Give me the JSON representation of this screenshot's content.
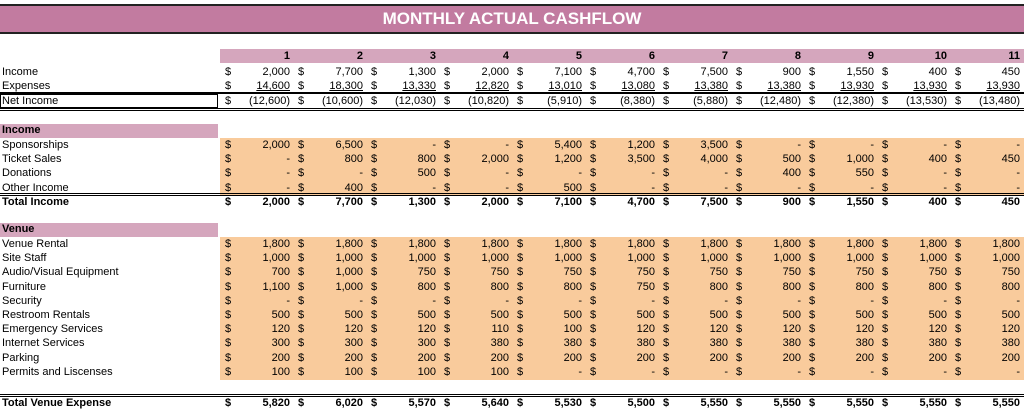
{
  "title": "MONTHLY ACTUAL CASHFLOW",
  "months": [
    "1",
    "2",
    "3",
    "4",
    "5",
    "6",
    "7",
    "8",
    "9",
    "10",
    "11"
  ],
  "currency": "$",
  "summary": [
    {
      "label": "Income",
      "values": [
        "2,000",
        "7,700",
        "1,300",
        "2,000",
        "7,100",
        "4,700",
        "7,500",
        "900",
        "1,550",
        "400",
        "450"
      ]
    },
    {
      "label": "Expenses",
      "values": [
        "14,600",
        "18,300",
        "13,330",
        "12,820",
        "13,010",
        "13,080",
        "13,380",
        "13,380",
        "13,930",
        "13,930",
        "13,930"
      ]
    },
    {
      "label": "Net Income",
      "values": [
        "(12,600)",
        "(10,600)",
        "(12,030)",
        "(10,820)",
        "(5,910)",
        "(8,380)",
        "(5,880)",
        "(12,480)",
        "(12,380)",
        "(13,530)",
        "(13,480)"
      ]
    }
  ],
  "income": {
    "header": "Income",
    "rows": [
      {
        "label": "Sponsorships",
        "values": [
          "2,000",
          "6,500",
          "-",
          "-",
          "5,400",
          "1,200",
          "3,500",
          "-",
          "-",
          "-",
          "-"
        ]
      },
      {
        "label": "Ticket Sales",
        "values": [
          "-",
          "800",
          "800",
          "2,000",
          "1,200",
          "3,500",
          "4,000",
          "500",
          "1,000",
          "400",
          "450"
        ]
      },
      {
        "label": "Donations",
        "values": [
          "-",
          "-",
          "500",
          "-",
          "-",
          "-",
          "-",
          "400",
          "550",
          "-",
          "-"
        ]
      },
      {
        "label": "Other Income",
        "values": [
          "-",
          "400",
          "-",
          "-",
          "500",
          "-",
          "-",
          "-",
          "-",
          "-",
          "-"
        ]
      }
    ],
    "total": {
      "label": "Total Income",
      "values": [
        "2,000",
        "7,700",
        "1,300",
        "2,000",
        "7,100",
        "4,700",
        "7,500",
        "900",
        "1,550",
        "400",
        "450"
      ]
    }
  },
  "venue": {
    "header": "Venue",
    "rows": [
      {
        "label": "Venue Rental",
        "values": [
          "1,800",
          "1,800",
          "1,800",
          "1,800",
          "1,800",
          "1,800",
          "1,800",
          "1,800",
          "1,800",
          "1,800",
          "1,800"
        ]
      },
      {
        "label": "Site Staff",
        "values": [
          "1,000",
          "1,000",
          "1,000",
          "1,000",
          "1,000",
          "1,000",
          "1,000",
          "1,000",
          "1,000",
          "1,000",
          "1,000"
        ]
      },
      {
        "label": "Audio/Visual Equipment",
        "values": [
          "700",
          "1,000",
          "750",
          "750",
          "750",
          "750",
          "750",
          "750",
          "750",
          "750",
          "750"
        ]
      },
      {
        "label": "Furniture",
        "values": [
          "1,100",
          "1,000",
          "800",
          "800",
          "800",
          "750",
          "800",
          "800",
          "800",
          "800",
          "800"
        ]
      },
      {
        "label": "Security",
        "values": [
          "-",
          "-",
          "-",
          "-",
          "-",
          "-",
          "-",
          "-",
          "-",
          "-",
          "-"
        ]
      },
      {
        "label": "Restroom Rentals",
        "values": [
          "500",
          "500",
          "500",
          "500",
          "500",
          "500",
          "500",
          "500",
          "500",
          "500",
          "500"
        ]
      },
      {
        "label": "Emergency Services",
        "values": [
          "120",
          "120",
          "120",
          "110",
          "100",
          "120",
          "120",
          "120",
          "120",
          "120",
          "120"
        ]
      },
      {
        "label": "Internet Services",
        "values": [
          "300",
          "300",
          "300",
          "380",
          "380",
          "380",
          "380",
          "380",
          "380",
          "380",
          "380"
        ]
      },
      {
        "label": "Parking",
        "values": [
          "200",
          "200",
          "200",
          "200",
          "200",
          "200",
          "200",
          "200",
          "200",
          "200",
          "200"
        ]
      },
      {
        "label": "Permits and Liscenses",
        "values": [
          "100",
          "100",
          "100",
          "100",
          "-",
          "-",
          "-",
          "-",
          "-",
          "-",
          "-"
        ]
      }
    ],
    "total": {
      "label": "Total Venue Expense",
      "values": [
        "5,820",
        "6,020",
        "5,570",
        "5,640",
        "5,530",
        "5,500",
        "5,550",
        "5,550",
        "5,550",
        "5,550",
        "5,550"
      ]
    }
  },
  "colors": {
    "title_bg": "#c27ba0",
    "header_bg": "#d5a6bd",
    "input_bg": "#f9cb9c"
  }
}
